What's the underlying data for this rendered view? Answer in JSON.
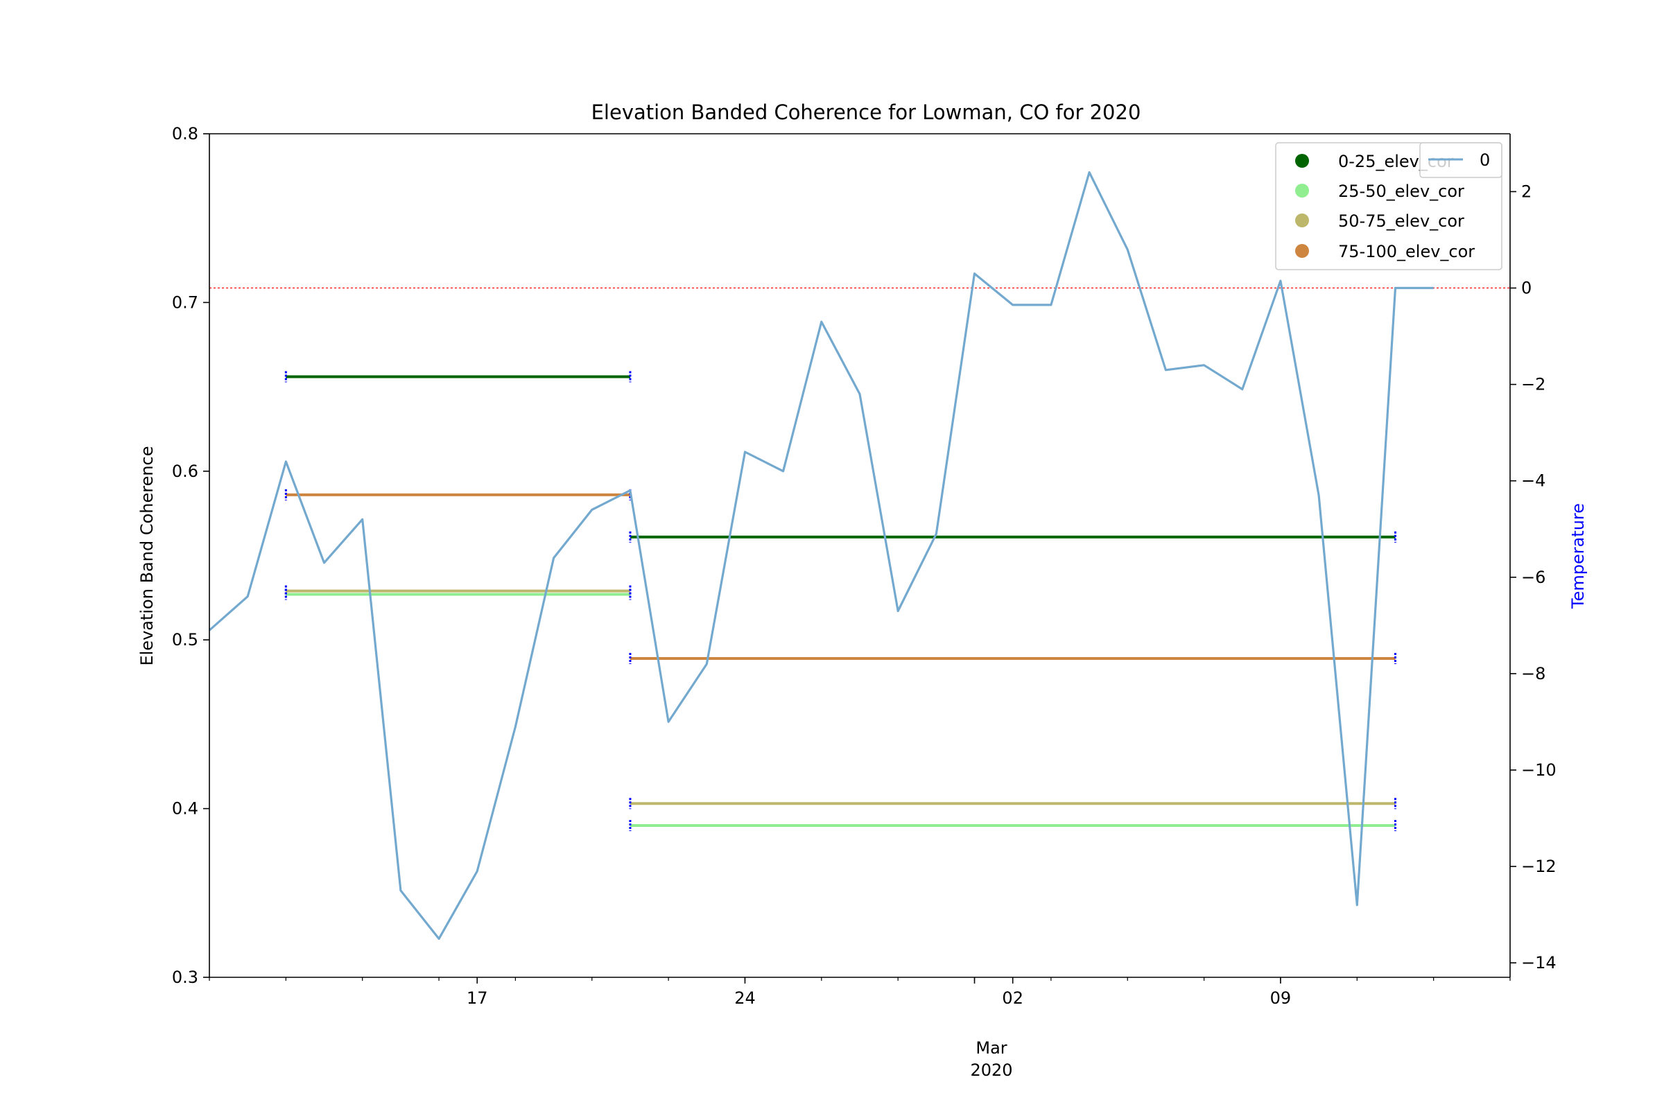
{
  "chart_data": {
    "type": "line",
    "title": "Elevation Banded Coherence for Lowman, CO for 2020",
    "ylabel": "Elevation Band Coherence",
    "y2label": "Temperature",
    "ylim": [
      0.3,
      0.8
    ],
    "y2lim": [
      -14.3,
      3.2
    ],
    "xlim": [
      "2020-02-10",
      "2020-03-15"
    ],
    "x_ticks": [
      {
        "date": "2020-02-17",
        "label": "17"
      },
      {
        "date": "2020-02-24",
        "label": "24"
      },
      {
        "date": "2020-03-02",
        "label": "02"
      },
      {
        "date": "2020-03-09",
        "label": "09"
      }
    ],
    "x_month_label": "Mar",
    "x_year_label": "2020",
    "yticks": [
      "0.3",
      "0.4",
      "0.5",
      "0.6",
      "0.7",
      "0.8"
    ],
    "y2ticks": [
      "2",
      "0",
      "−2",
      "−4",
      "−6",
      "−8",
      "−10",
      "−12",
      "−14"
    ],
    "grid": false,
    "freezing_line": {
      "y2": 0,
      "color": "#ff0000"
    },
    "coherence_series": [
      {
        "name": "0-25_elev_cor",
        "color": "#006400",
        "segments": [
          {
            "start": "2020-02-12",
            "end": "2020-02-21",
            "value": 0.656
          },
          {
            "start": "2020-02-21",
            "end": "2020-03-12",
            "value": 0.561
          }
        ]
      },
      {
        "name": "25-50_elev_cor",
        "color": "#90ee90",
        "segments": [
          {
            "start": "2020-02-12",
            "end": "2020-02-21",
            "value": 0.527
          },
          {
            "start": "2020-02-21",
            "end": "2020-03-12",
            "value": 0.39
          }
        ]
      },
      {
        "name": "50-75_elev_cor",
        "color": "#bdb76b",
        "segments": [
          {
            "start": "2020-02-12",
            "end": "2020-02-21",
            "value": 0.529
          },
          {
            "start": "2020-02-21",
            "end": "2020-03-12",
            "value": 0.403
          }
        ]
      },
      {
        "name": "75-100_elev_cor",
        "color": "#cd853f",
        "segments": [
          {
            "start": "2020-02-12",
            "end": "2020-02-21",
            "value": 0.586
          },
          {
            "start": "2020-02-21",
            "end": "2020-03-12",
            "value": 0.489
          }
        ]
      }
    ],
    "temperature_series": {
      "name": "0",
      "color": "#74a9cf",
      "x": [
        "2020-02-10",
        "2020-02-11",
        "2020-02-12",
        "2020-02-13",
        "2020-02-14",
        "2020-02-15",
        "2020-02-16",
        "2020-02-17",
        "2020-02-18",
        "2020-02-19",
        "2020-02-20",
        "2020-02-21",
        "2020-02-22",
        "2020-02-23",
        "2020-02-24",
        "2020-02-25",
        "2020-02-26",
        "2020-02-27",
        "2020-02-28",
        "2020-02-29",
        "2020-03-01",
        "2020-03-02",
        "2020-03-03",
        "2020-03-04",
        "2020-03-05",
        "2020-03-06",
        "2020-03-07",
        "2020-03-08",
        "2020-03-09",
        "2020-03-10",
        "2020-03-11",
        "2020-03-12",
        "2020-03-13"
      ],
      "y": [
        -7.1,
        -6.4,
        -3.6,
        -5.7,
        -4.8,
        -12.5,
        -13.5,
        -12.1,
        -9.1,
        -5.6,
        -4.6,
        -4.2,
        -9.0,
        -7.8,
        -3.4,
        -3.8,
        -0.7,
        -2.2,
        -6.7,
        -5.1,
        0.3,
        -0.35,
        -0.35,
        2.4,
        0.8,
        -1.7,
        -1.6,
        -2.1,
        0.15,
        -4.3,
        -12.8,
        0,
        0
      ]
    },
    "legend": {
      "placement": "top-right",
      "entries": [
        "0-25_elev_cor",
        "25-50_elev_cor",
        "50-75_elev_cor",
        "75-100_elev_cor"
      ],
      "secondary_entry": "0"
    },
    "errorbar_color": "#0000ff"
  }
}
